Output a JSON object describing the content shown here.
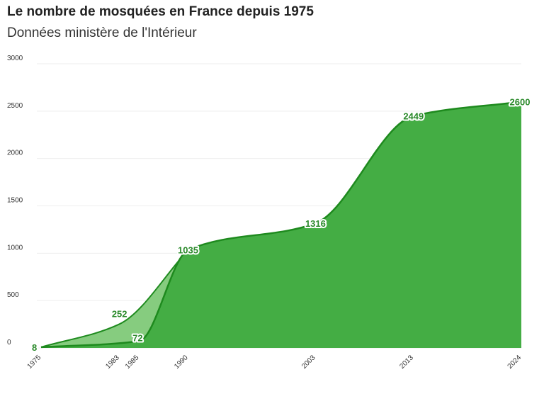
{
  "chart_data": {
    "type": "area",
    "title": "Le nombre de mosquées en France depuis 1975",
    "subtitle": "Données ministère de l'Intérieur",
    "xlabel": "",
    "ylabel": "",
    "xlim": [
      1975,
      2024
    ],
    "ylim": [
      0,
      3000
    ],
    "yticks": [
      0,
      500,
      1000,
      1500,
      2000,
      2500,
      3000
    ],
    "xticks": [
      1975,
      1983,
      1985,
      1990,
      2003,
      2013,
      2024
    ],
    "grid": true,
    "legend": "none",
    "colors": {
      "main_fill": "#44ad44",
      "main_line": "#1e8a1e",
      "alt_fill": "#86cc7f"
    },
    "series": [
      {
        "x": [
          1975,
          1985,
          1990,
          2003,
          2013,
          2024
        ],
        "values": [
          8,
          72,
          1035,
          1316,
          2449,
          2600
        ]
      },
      {
        "x": [
          1975,
          1983,
          1990
        ],
        "values": [
          8,
          252,
          1035
        ]
      }
    ],
    "point_labels": [
      "8",
      "252",
      "72",
      "1035",
      "1316",
      "2449",
      "2600"
    ]
  }
}
